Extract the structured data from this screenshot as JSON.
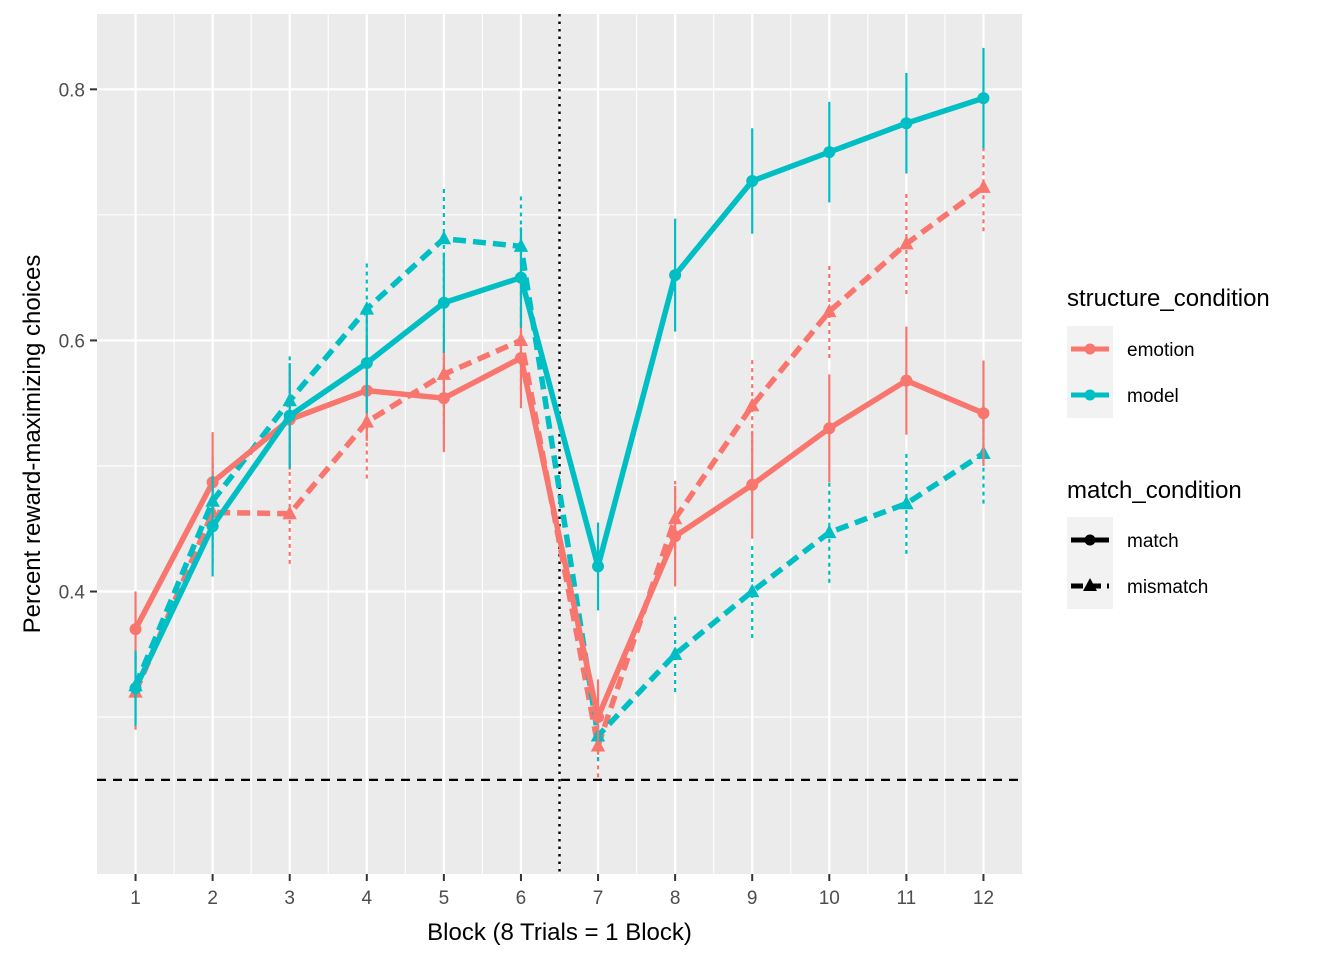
{
  "chart_data": {
    "type": "line",
    "xlabel": "Block (8 Trials = 1 Block)",
    "ylabel": "Percent reward-maximizing choices",
    "x": [
      1,
      2,
      3,
      4,
      5,
      6,
      7,
      8,
      9,
      10,
      11,
      12
    ],
    "xlim": [
      0.5,
      12.5
    ],
    "ylim": [
      0.175,
      0.86
    ],
    "yticks": [
      0.4,
      0.6,
      0.8
    ],
    "ytick_labels": [
      "0.4",
      "0.6",
      "0.8"
    ],
    "reference_lines": {
      "chance_level_y": 0.25,
      "phase_change_x": 6.5
    },
    "colors": {
      "emotion": "#F8766D",
      "model": "#00BFC4",
      "panel_background": "#EBEBEB",
      "grid": "#FFFFFF"
    },
    "series": [
      {
        "structure": "emotion",
        "match": "match",
        "values": [
          0.37,
          0.487,
          0.537,
          0.56,
          0.554,
          0.586,
          0.3,
          0.444,
          0.485,
          0.53,
          0.568,
          0.542
        ],
        "error": [
          0.03,
          0.04,
          0.04,
          0.04,
          0.043,
          0.04,
          0.03,
          0.04,
          0.043,
          0.043,
          0.043,
          0.042
        ]
      },
      {
        "structure": "emotion",
        "match": "mismatch",
        "values": [
          0.32,
          0.463,
          0.462,
          0.535,
          0.573,
          0.6,
          0.277,
          0.458,
          0.548,
          0.623,
          0.677,
          0.722
        ],
        "error": [
          0.03,
          0.04,
          0.04,
          0.045,
          0.04,
          0.04,
          0.025,
          0.03,
          0.037,
          0.037,
          0.04,
          0.035
        ]
      },
      {
        "structure": "model",
        "match": "match",
        "values": [
          0.323,
          0.452,
          0.54,
          0.582,
          0.63,
          0.65,
          0.42,
          0.652,
          0.727,
          0.75,
          0.773,
          0.793
        ],
        "error": [
          0.03,
          0.04,
          0.042,
          0.04,
          0.04,
          0.04,
          0.035,
          0.045,
          0.042,
          0.04,
          0.04,
          0.04
        ]
      },
      {
        "structure": "model",
        "match": "mismatch",
        "values": [
          0.325,
          0.472,
          0.552,
          0.625,
          0.681,
          0.675,
          0.285,
          0.35,
          0.4,
          0.447,
          0.47,
          0.51
        ],
        "error": [
          0.025,
          0.038,
          0.038,
          0.037,
          0.04,
          0.04,
          0.02,
          0.03,
          0.037,
          0.04,
          0.04,
          0.04
        ]
      }
    ],
    "legend": {
      "placement": "right",
      "groups": [
        {
          "title": "structure_condition",
          "entries": [
            {
              "label": "emotion",
              "color": "#F8766D"
            },
            {
              "label": "model",
              "color": "#00BFC4"
            }
          ]
        },
        {
          "title": "match_condition",
          "entries": [
            {
              "label": "match",
              "shape": "circle",
              "line": "solid"
            },
            {
              "label": "mismatch",
              "shape": "triangle",
              "line": "dashed"
            }
          ]
        }
      ]
    }
  }
}
